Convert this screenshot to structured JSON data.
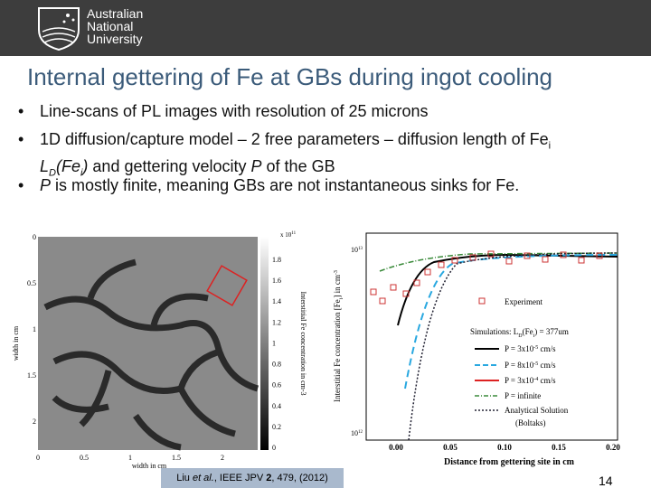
{
  "header": {
    "logo": [
      "Australian",
      "National",
      "University"
    ]
  },
  "title": "Internal gettering of Fe at GBs during ingot cooling",
  "bullets": [
    [
      "Line-scans of PL images with resolution of 25 microns"
    ],
    [
      "1D diffusion/capture model – 2 free parameters – diffusion length of Fe",
      "i",
      "L",
      "D",
      "(Fe",
      "i",
      ")",
      " and gettering velocity ",
      "P",
      " of the GB"
    ],
    [
      "P",
      " is mostly finite, meaning GBs are not instantaneous sinks for Fe."
    ]
  ],
  "left_figure": {
    "yticks": [
      "0",
      "0.5",
      "1",
      "1.5",
      "2"
    ],
    "xticks": [
      "0",
      "0.5",
      "1",
      "1.5",
      "2"
    ],
    "xlabel": "width in cm",
    "ylabel": "width in cm",
    "colorbar_exponent": "x 10",
    "colorbar_exponent_power": "11",
    "colorbar_ticks": [
      "1.8",
      "1.6",
      "1.4",
      "1.2",
      "1",
      "0.8",
      "0.6",
      "0.4",
      "0.2",
      "0"
    ],
    "colorbar_label": "Interstitial Fe concentration in cm-3"
  },
  "right_figure": {
    "yticks": [
      {
        "base": "10",
        "power": "13"
      },
      {
        "base": "10",
        "power": "12"
      }
    ],
    "xticks": [
      "0.00",
      "0.05",
      "0.10",
      "0.15",
      "0.20"
    ],
    "xlabel": "Distance from gettering site in cm",
    "ylabel": "Interstitial Fe concentration [Fe",
    "ylabel_sub": "i",
    "ylabel_end": "] in cm",
    "ylabel_power": "-3",
    "legend": [
      "Experiment",
      "Simulations: L",
      "D",
      "(Fe",
      "i",
      ") = 377um",
      "P = 3x10",
      "-5",
      " cm/s",
      "P = 8x10",
      "-5",
      " cm/s",
      "P = 3x10",
      "-4",
      " cm/s",
      "P = infinite",
      "Analytical Solution",
      "(Boltaks)"
    ]
  },
  "footer": {
    "citation": [
      "Liu ",
      "et al.",
      ", IEEE JPV ",
      "2",
      ", 479, (2012)"
    ],
    "page": "14"
  }
}
